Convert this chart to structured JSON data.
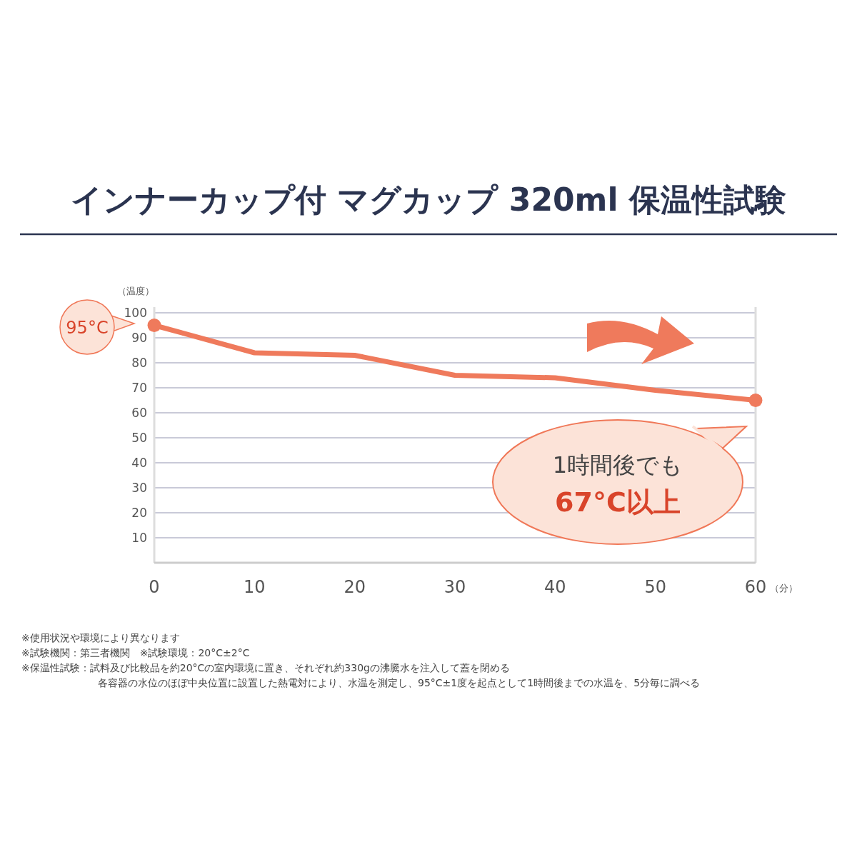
{
  "chart_data": {
    "type": "line",
    "title": "インナーカップ付 マグカップ 320ml 保温性試験",
    "ylabel": "（温度）",
    "xlabel": "（分）",
    "x": [
      0,
      10,
      20,
      30,
      40,
      50,
      60
    ],
    "series": [
      {
        "color": "#ef7a5c",
        "values": [
          95,
          84,
          83,
          75,
          74,
          69,
          65
        ]
      }
    ],
    "xlim": [
      0,
      60
    ],
    "xticks": [
      0,
      10,
      20,
      30,
      40,
      50,
      60
    ],
    "ylim": [
      0,
      100
    ],
    "yticks": [
      10,
      20,
      30,
      40,
      50,
      60,
      70,
      80,
      90,
      100
    ],
    "grid": "y",
    "line_style": "solid",
    "annotations": [
      "95°C",
      "1時間後でも",
      "67°C以上",
      "※使用状況や環境により異なります",
      "※試験機関：第三者機関　※試験環境：20°C±2°C",
      "※保温性試験：試料及び比較品を約20°Cの室内環境に置き、それぞれ約330gの沸騰水を注入して蓋を閉める",
      "各容器の水位のほぼ中央位置に設置した熱電対により、水温を測定し、95°C±1度を起点として1時間後までの水温を、5分毎に調べる"
    ]
  }
}
